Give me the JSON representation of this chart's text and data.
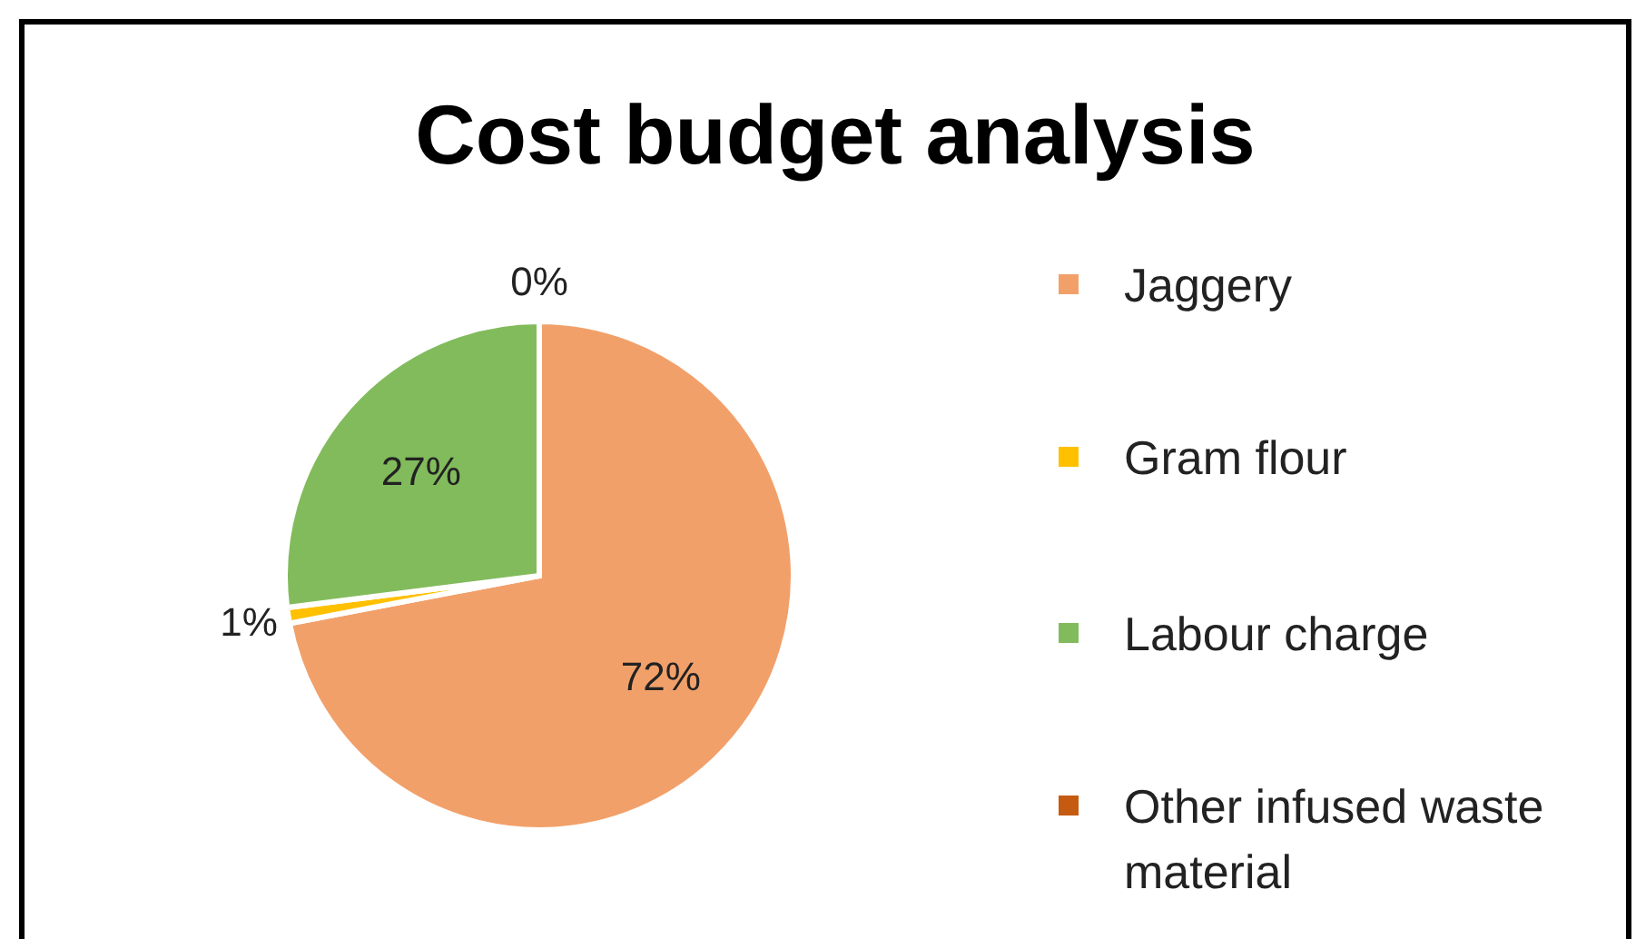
{
  "chart_data": {
    "type": "pie",
    "title": "Cost budget analysis",
    "categories": [
      "Jaggery",
      "Gram flour",
      "Labour charge",
      "Other infused waste material"
    ],
    "values": [
      72,
      1,
      27,
      0
    ],
    "colors": [
      "#f2a06a",
      "#ffc000",
      "#82bb5c",
      "#c55a11"
    ],
    "value_labels": [
      "72%",
      "1%",
      "27%",
      "0%"
    ],
    "legend": "right"
  }
}
